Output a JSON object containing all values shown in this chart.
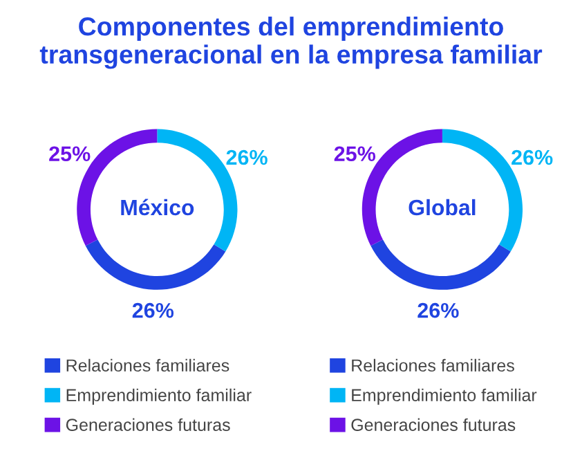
{
  "chart_data": [
    {
      "type": "donut",
      "title": "Componentes del emprendimiento transgeneracional en la empresa familiar",
      "annotations": [
        "México"
      ],
      "categories": [
        "Relaciones familiares",
        "Emprendimiento familiar",
        "Generaciones futuras"
      ],
      "values": [
        26,
        26,
        25
      ],
      "value_labels": [
        "26%",
        "26%",
        "25%"
      ],
      "colors": [
        "#1f44e0",
        "#00b5f5",
        "#6c12e6"
      ],
      "legend": "bottom"
    },
    {
      "type": "donut",
      "annotations": [
        "Global"
      ],
      "categories": [
        "Relaciones familiares",
        "Emprendimiento familiar",
        "Generaciones futuras"
      ],
      "values": [
        26,
        26,
        25
      ],
      "value_labels": [
        "26%",
        "26%",
        "25%"
      ],
      "colors": [
        "#1f44e0",
        "#00b5f5",
        "#6c12e6"
      ],
      "legend": "bottom"
    }
  ]
}
